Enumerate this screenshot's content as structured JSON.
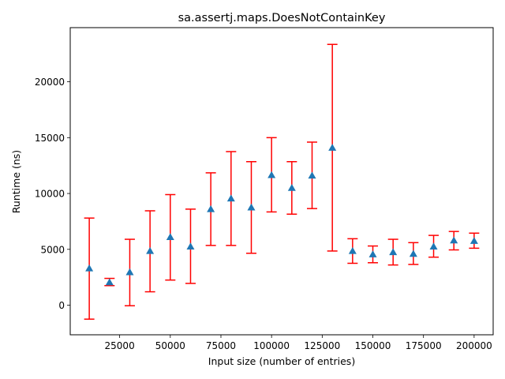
{
  "chart_data": {
    "type": "scatter",
    "title": "sa.assertj.maps.DoesNotContainKey",
    "xlabel": "Input size (number of entries)",
    "ylabel": "Runtime (ns)",
    "xlim": [
      600,
      209400
    ],
    "ylim": [
      -2650,
      24850
    ],
    "xticks": [
      25000,
      50000,
      75000,
      100000,
      125000,
      150000,
      175000,
      200000
    ],
    "xtick_labels": [
      "25000",
      "50000",
      "75000",
      "100000",
      "125000",
      "150000",
      "175000",
      "200000"
    ],
    "yticks": [
      0,
      5000,
      10000,
      15000,
      20000
    ],
    "ytick_labels": [
      "0",
      "5000",
      "10000",
      "15000",
      "20000"
    ],
    "grid": false,
    "marker": "triangle-up",
    "marker_color": "#1f77b4",
    "errorbar_color": "#ff0000",
    "points": [
      {
        "x": 10000,
        "y": 3300,
        "low": -1250,
        "high": 7800
      },
      {
        "x": 20000,
        "y": 2050,
        "low": 1750,
        "high": 2400
      },
      {
        "x": 30000,
        "y": 2950,
        "low": -50,
        "high": 5900
      },
      {
        "x": 40000,
        "y": 4850,
        "low": 1200,
        "high": 8450
      },
      {
        "x": 50000,
        "y": 6100,
        "low": 2250,
        "high": 9900
      },
      {
        "x": 60000,
        "y": 5250,
        "low": 1950,
        "high": 8600
      },
      {
        "x": 70000,
        "y": 8600,
        "low": 5350,
        "high": 11850
      },
      {
        "x": 80000,
        "y": 9550,
        "low": 5350,
        "high": 13750
      },
      {
        "x": 90000,
        "y": 8750,
        "low": 4650,
        "high": 12850
      },
      {
        "x": 100000,
        "y": 11650,
        "low": 8350,
        "high": 15000
      },
      {
        "x": 110000,
        "y": 10500,
        "low": 8150,
        "high": 12850
      },
      {
        "x": 120000,
        "y": 11600,
        "low": 8650,
        "high": 14600
      },
      {
        "x": 130000,
        "y": 14100,
        "low": 4850,
        "high": 23350
      },
      {
        "x": 140000,
        "y": 4850,
        "low": 3750,
        "high": 5950
      },
      {
        "x": 150000,
        "y": 4550,
        "low": 3800,
        "high": 5300
      },
      {
        "x": 160000,
        "y": 4750,
        "low": 3600,
        "high": 5900
      },
      {
        "x": 170000,
        "y": 4600,
        "low": 3650,
        "high": 5600
      },
      {
        "x": 180000,
        "y": 5250,
        "low": 4300,
        "high": 6250
      },
      {
        "x": 190000,
        "y": 5800,
        "low": 4950,
        "high": 6600
      },
      {
        "x": 200000,
        "y": 5750,
        "low": 5100,
        "high": 6450
      }
    ]
  }
}
